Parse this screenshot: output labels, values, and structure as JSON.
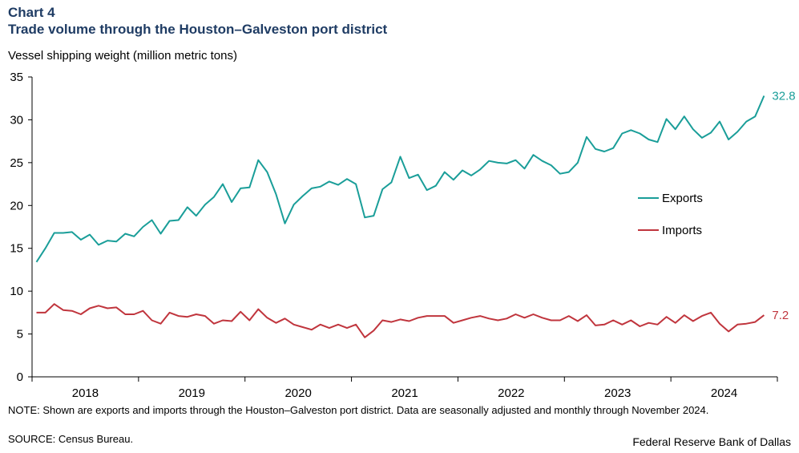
{
  "chart_number": "Chart 4",
  "title": "Trade volume through the Houston–Galveston port district",
  "note": "NOTE: Shown are exports and imports through the Houston–Galveston port district. Data are seasonally adjusted and monthly through November 2024.",
  "source": "SOURCE: Census Bureau.",
  "credit": "Federal Reserve Bank of Dallas",
  "chart_data": {
    "type": "line",
    "ylabel": "Vessel shipping weight (million metric tons)",
    "xlabel": "",
    "ylim": [
      0,
      35
    ],
    "yticks": [
      0,
      5,
      10,
      15,
      20,
      25,
      30,
      35
    ],
    "xtick_labels": [
      "2018",
      "2019",
      "2020",
      "2021",
      "2022",
      "2023",
      "2024"
    ],
    "start": "2018-01",
    "end": "2024-11",
    "frequency": "monthly",
    "grid": false,
    "legend_position": "right",
    "series": [
      {
        "name": "Exports",
        "color": "#1a9e99",
        "end_label": "32.8",
        "values": [
          13.4,
          15.0,
          16.8,
          16.8,
          16.9,
          16.0,
          16.6,
          15.4,
          15.9,
          15.8,
          16.7,
          16.4,
          17.5,
          18.3,
          16.7,
          18.2,
          18.3,
          19.8,
          18.8,
          20.1,
          21.0,
          22.5,
          20.4,
          22.0,
          22.1,
          25.3,
          23.9,
          21.3,
          17.9,
          20.1,
          21.1,
          22.0,
          22.2,
          22.8,
          22.4,
          23.1,
          22.5,
          18.6,
          18.8,
          21.9,
          22.7,
          25.7,
          23.2,
          23.6,
          21.8,
          22.3,
          23.9,
          23.0,
          24.1,
          23.5,
          24.2,
          25.2,
          25.0,
          24.9,
          25.3,
          24.3,
          25.9,
          25.2,
          24.7,
          23.7,
          23.9,
          25.0,
          28.0,
          26.6,
          26.3,
          26.7,
          28.4,
          28.8,
          28.4,
          27.7,
          27.4,
          30.1,
          28.9,
          30.4,
          28.9,
          27.9,
          28.5,
          29.8,
          27.7,
          28.6,
          29.8,
          30.4,
          32.8
        ]
      },
      {
        "name": "Imports",
        "color": "#c0353d",
        "end_label": "7.2",
        "values": [
          7.5,
          7.5,
          8.5,
          7.8,
          7.7,
          7.3,
          8.0,
          8.3,
          8.0,
          8.1,
          7.3,
          7.3,
          7.7,
          6.6,
          6.2,
          7.5,
          7.1,
          7.0,
          7.3,
          7.1,
          6.2,
          6.6,
          6.5,
          7.6,
          6.6,
          7.9,
          6.9,
          6.3,
          6.8,
          6.1,
          5.8,
          5.5,
          6.1,
          5.7,
          6.1,
          5.7,
          6.1,
          4.6,
          5.4,
          6.6,
          6.4,
          6.7,
          6.5,
          6.9,
          7.1,
          7.1,
          7.1,
          6.3,
          6.6,
          6.9,
          7.1,
          6.8,
          6.6,
          6.8,
          7.3,
          6.9,
          7.3,
          6.9,
          6.6,
          6.6,
          7.1,
          6.5,
          7.2,
          6.0,
          6.1,
          6.6,
          6.1,
          6.6,
          5.9,
          6.3,
          6.1,
          7.0,
          6.3,
          7.2,
          6.5,
          7.1,
          7.5,
          6.2,
          5.3,
          6.1,
          6.2,
          6.4,
          7.2
        ]
      }
    ]
  }
}
